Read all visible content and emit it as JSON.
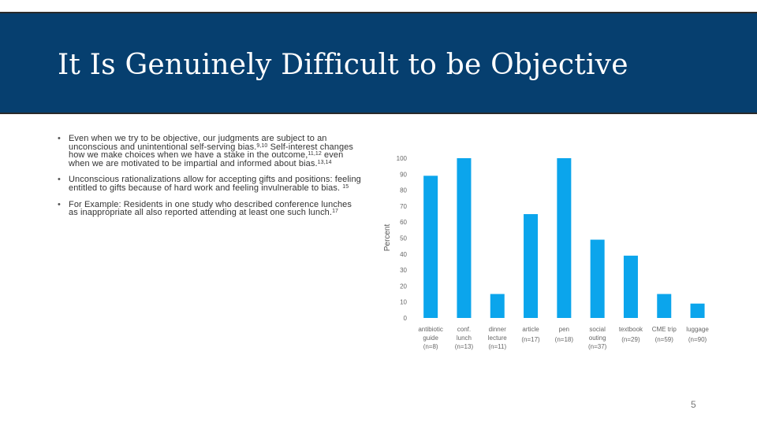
{
  "colors": {
    "header_bg": "#063f6f",
    "bar": "#0ba5ec",
    "text": "#333333"
  },
  "slide": {
    "title": "It Is Genuinely Difficult to be Objective",
    "page_number": "5",
    "bullets": [
      {
        "text": "Even when we try to be objective, our judgments are subject to an unconscious and unintentional self-serving bias.",
        "ref1": "9,10",
        "text2": " Self-interest changes how we make choices when we have a stake in the outcome,",
        "ref2": "11,12",
        "text3": " even when we are motivated to be impartial and informed about bias.",
        "ref3": "13,14"
      },
      {
        "text": "Unconscious rationalizations allow for accepting gifts and positions: feeling entitled to gifts because of hard work and feeling invulnerable to bias. ",
        "ref1": "15"
      },
      {
        "text": "For Example: Residents in one study who described conference lunches as inappropriate all also reported attending at least one such lunch.",
        "ref1": "17"
      }
    ]
  },
  "chart_data": {
    "type": "bar",
    "ylabel": "Percent",
    "ylim": [
      0,
      100
    ],
    "yticks": [
      0,
      10,
      20,
      30,
      40,
      50,
      60,
      70,
      80,
      90,
      100
    ],
    "categories": [
      {
        "line1": "antibiotic",
        "line2": "guide",
        "n": "(n=8)"
      },
      {
        "line1": "conf.",
        "line2": "lunch",
        "n": "(n=13)"
      },
      {
        "line1": "dinner",
        "line2": "lecture",
        "n": "(n=11)"
      },
      {
        "line1": "article",
        "line2": "",
        "n": "(n=17)"
      },
      {
        "line1": "pen",
        "line2": "",
        "n": "(n=18)"
      },
      {
        "line1": "social",
        "line2": "outing",
        "n": "(n=37)"
      },
      {
        "line1": "textbook",
        "line2": "",
        "n": "(n=29)"
      },
      {
        "line1": "CME trip",
        "line2": "",
        "n": "(n=59)"
      },
      {
        "line1": "luggage",
        "line2": "",
        "n": "(n=90)"
      }
    ],
    "values": [
      89,
      100,
      15,
      65,
      100,
      49,
      39,
      15,
      9
    ]
  }
}
